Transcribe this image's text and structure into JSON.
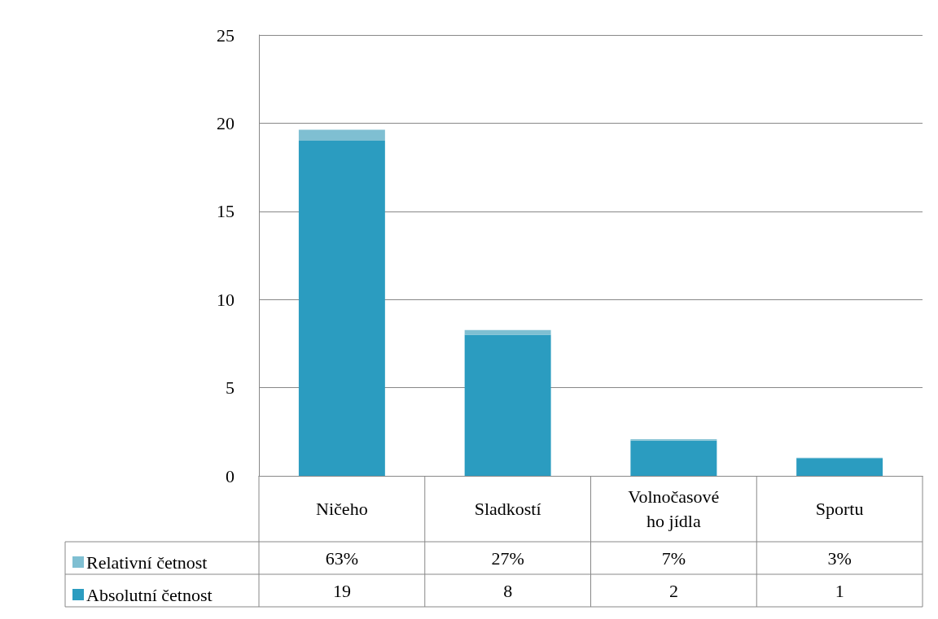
{
  "chart_data": {
    "type": "bar",
    "categories": [
      "Ničeho",
      "Sladkostí",
      "Volnočasového jídla",
      "Sportu"
    ],
    "stacked": true,
    "series": [
      {
        "name": "Absolutní četnost",
        "color": "#2b9cc0",
        "values": [
          19,
          8,
          2,
          1
        ],
        "value_labels": [
          "19",
          "8",
          "2",
          "1"
        ]
      },
      {
        "name": "Relativní četnost",
        "color": "#7fbfd2",
        "values": [
          0.63,
          0.27,
          0.07,
          0.03
        ],
        "value_labels": [
          "63%",
          "27%",
          "7%",
          "3%"
        ]
      }
    ],
    "ylim": [
      0,
      25
    ],
    "yticks": [
      0,
      5,
      10,
      15,
      20,
      25
    ],
    "grid": "y",
    "legend": "bottom"
  }
}
